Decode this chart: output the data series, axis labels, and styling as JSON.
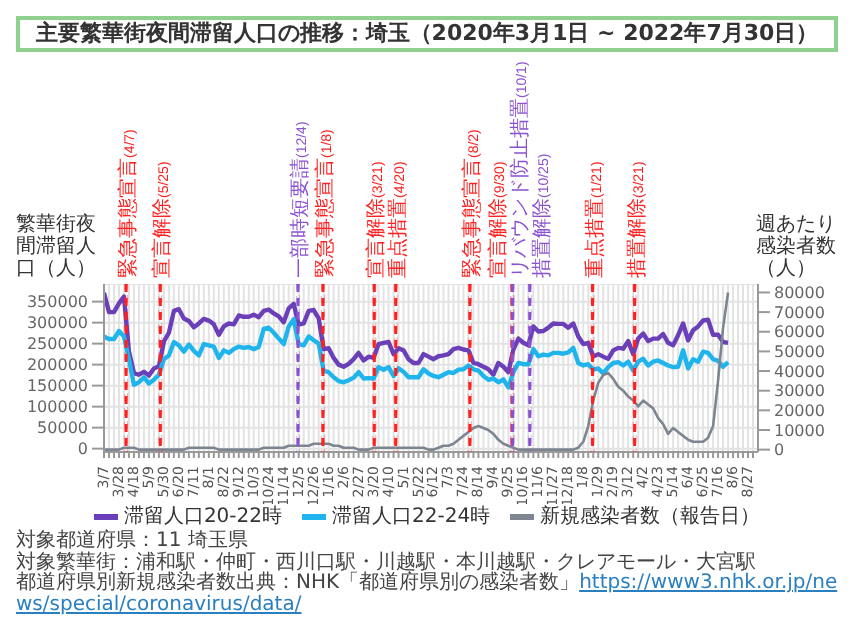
{
  "chart_data": {
    "type": "line",
    "title": "主要繁華街夜間滞留人口の推移：埼玉（2020年3月1日 ~ 2022年7月30日）",
    "ylabel": "繁華街夜間滞留人口（人）",
    "y2label": "週あたり感染者数（人）",
    "x": [
      "2020-03-07",
      "2020-03-14",
      "2020-03-21",
      "2020-03-28",
      "2020-04-04",
      "2020-04-11",
      "2020-04-18",
      "2020-04-25",
      "2020-05-02",
      "2020-05-09",
      "2020-05-16",
      "2020-05-23",
      "2020-05-30",
      "2020-06-06",
      "2020-06-13",
      "2020-06-20",
      "2020-06-27",
      "2020-07-04",
      "2020-07-11",
      "2020-07-18",
      "2020-07-25",
      "2020-08-01",
      "2020-08-08",
      "2020-08-15",
      "2020-08-22",
      "2020-08-29",
      "2020-09-05",
      "2020-09-12",
      "2020-09-19",
      "2020-09-26",
      "2020-10-03",
      "2020-10-10",
      "2020-10-17",
      "2020-10-24",
      "2020-10-31",
      "2020-11-07",
      "2020-11-14",
      "2020-11-21",
      "2020-11-28",
      "2020-12-05",
      "2020-12-12",
      "2020-12-19",
      "2020-12-26",
      "2021-01-02",
      "2021-01-09",
      "2021-01-16",
      "2021-01-23",
      "2021-01-30",
      "2021-02-06",
      "2021-02-13",
      "2021-02-20",
      "2021-02-27",
      "2021-03-06",
      "2021-03-13",
      "2021-03-20",
      "2021-03-27",
      "2021-04-03",
      "2021-04-10",
      "2021-04-17",
      "2021-04-24",
      "2021-05-01",
      "2021-05-08",
      "2021-05-15",
      "2021-05-22",
      "2021-05-29",
      "2021-06-05",
      "2021-06-12",
      "2021-06-19",
      "2021-06-26",
      "2021-07-03",
      "2021-07-10",
      "2021-07-17",
      "2021-07-24",
      "2021-07-31",
      "2021-08-07",
      "2021-08-14",
      "2021-08-21",
      "2021-08-28",
      "2021-09-04",
      "2021-09-11",
      "2021-09-18",
      "2021-09-25",
      "2021-10-02",
      "2021-10-09",
      "2021-10-16",
      "2021-10-23",
      "2021-10-30",
      "2021-11-06",
      "2021-11-13",
      "2021-11-20",
      "2021-11-27",
      "2021-12-04",
      "2021-12-11",
      "2021-12-18",
      "2021-12-25",
      "2022-01-01",
      "2022-01-08",
      "2022-01-15",
      "2022-01-22",
      "2022-01-29",
      "2022-02-05",
      "2022-02-12",
      "2022-02-19",
      "2022-02-26",
      "2022-03-05",
      "2022-03-12",
      "2022-03-19",
      "2022-03-26",
      "2022-04-02",
      "2022-04-09",
      "2022-04-16",
      "2022-04-23",
      "2022-04-30",
      "2022-05-07",
      "2022-05-14",
      "2022-05-21",
      "2022-05-28",
      "2022-06-04",
      "2022-06-11",
      "2022-06-18",
      "2022-06-25",
      "2022-07-02",
      "2022-07-09",
      "2022-07-16",
      "2022-07-23",
      "2022-07-30"
    ],
    "series": [
      {
        "name": "滞留人口20-22時",
        "color": "#6b3fb8",
        "values": [
          371000,
          325000,
          325000,
          346000,
          362000,
          231000,
          180000,
          176000,
          183000,
          174000,
          191000,
          196000,
          255000,
          276000,
          328000,
          332000,
          310000,
          304000,
          289000,
          298000,
          309000,
          305000,
          296000,
          271000,
          291000,
          298000,
          296000,
          317000,
          314000,
          314000,
          319000,
          313000,
          328000,
          331000,
          322000,
          315000,
          301000,
          334000,
          345000,
          295000,
          298000,
          328000,
          330000,
          310000,
          237000,
          239000,
          216000,
          200000,
          195000,
          202000,
          213000,
          228000,
          210000,
          219000,
          216000,
          249000,
          252000,
          254000,
          225000,
          239000,
          234000,
          213000,
          204000,
          204000,
          225000,
          219000,
          213000,
          220000,
          222000,
          225000,
          237000,
          240000,
          236000,
          234000,
          204000,
          201000,
          195000,
          189000,
          176000,
          204000,
          195000,
          182000,
          236000,
          262000,
          252000,
          246000,
          291000,
          279000,
          280000,
          288000,
          298000,
          297000,
          297000,
          288000,
          298000,
          267000,
          249000,
          252000,
          219000,
          225000,
          219000,
          214000,
          234000,
          240000,
          238000,
          256000,
          225000,
          262000,
          274000,
          256000,
          262000,
          262000,
          273000,
          252000,
          246000,
          270000,
          298000,
          258000,
          282000,
          291000,
          305000,
          307000,
          271000,
          271000,
          254000,
          252000
        ]
      },
      {
        "name": "滞留人口22-24時",
        "color": "#1fb5ec",
        "values": [
          267000,
          261000,
          261000,
          280000,
          267000,
          213000,
          152000,
          158000,
          170000,
          155000,
          164000,
          176000,
          213000,
          222000,
          254000,
          246000,
          231000,
          248000,
          233000,
          222000,
          249000,
          246000,
          243000,
          216000,
          234000,
          228000,
          237000,
          243000,
          240000,
          242000,
          237000,
          242000,
          285000,
          288000,
          276000,
          262000,
          249000,
          291000,
          308000,
          249000,
          246000,
          267000,
          258000,
          250000,
          185000,
          182000,
          170000,
          161000,
          158000,
          163000,
          169000,
          182000,
          167000,
          168000,
          167000,
          194000,
          188000,
          194000,
          173000,
          191000,
          183000,
          170000,
          170000,
          170000,
          189000,
          179000,
          173000,
          170000,
          176000,
          182000,
          180000,
          188000,
          189000,
          198000,
          189000,
          186000,
          173000,
          164000,
          167000,
          158000,
          165000,
          146000,
          182000,
          204000,
          201000,
          201000,
          237000,
          220000,
          224000,
          222000,
          228000,
          228000,
          226000,
          229000,
          240000,
          204000,
          198000,
          201000,
          188000,
          191000,
          179000,
          194000,
          204000,
          206000,
          198000,
          207000,
          186000,
          207000,
          214000,
          198000,
          207000,
          210000,
          204000,
          198000,
          194000,
          195000,
          234000,
          191000,
          213000,
          207000,
          231000,
          228000,
          213000,
          209000,
          195000,
          206000
        ]
      },
      {
        "name": "新規感染者数（報告日）",
        "color": "#7d8590",
        "axis": "y2",
        "values": [
          0,
          0,
          0,
          0,
          1000,
          1000,
          1000,
          0,
          0,
          0,
          0,
          0,
          0,
          0,
          0,
          0,
          0,
          1000,
          1000,
          1000,
          1000,
          1000,
          1000,
          0,
          0,
          0,
          0,
          0,
          0,
          0,
          0,
          0,
          1000,
          1000,
          1000,
          1000,
          1000,
          2000,
          2000,
          2000,
          2000,
          2000,
          3000,
          3000,
          3000,
          3000,
          2000,
          2000,
          1000,
          1000,
          1000,
          0,
          0,
          0,
          1000,
          1000,
          1000,
          1000,
          1000,
          1000,
          1000,
          1000,
          1000,
          1000,
          1000,
          0,
          0,
          1000,
          2000,
          2000,
          3000,
          5000,
          7000,
          9000,
          11000,
          12000,
          11000,
          10000,
          8000,
          5000,
          3000,
          2000,
          1000,
          0,
          0,
          0,
          0,
          0,
          0,
          0,
          0,
          0,
          0,
          0,
          0,
          1000,
          4000,
          12000,
          25000,
          34000,
          38000,
          39000,
          36000,
          32000,
          30000,
          27000,
          25000,
          22000,
          25000,
          23000,
          21000,
          16000,
          13000,
          8000,
          11000,
          9000,
          7000,
          5000,
          4000,
          4000,
          4000,
          6000,
          12000,
          35000,
          62000,
          80000
        ]
      }
    ],
    "xlim": [
      "2020-03-07",
      "2022-09-10"
    ],
    "xticks": [
      {
        "value": "2020-03-07",
        "label": "3/7"
      },
      {
        "value": "2020-03-14",
        "label": null
      },
      {
        "value": "2020-03-21",
        "label": null
      },
      {
        "value": "2020-03-28",
        "label": "3/28"
      },
      {
        "value": "2020-04-04",
        "label": null
      },
      {
        "value": "2020-04-11",
        "label": null
      },
      {
        "value": "2020-04-18",
        "label": "4/18"
      },
      {
        "value": "2020-04-25",
        "label": null
      },
      {
        "value": "2020-05-02",
        "label": null
      },
      {
        "value": "2020-05-09",
        "label": "5/9"
      },
      {
        "value": "2020-05-16",
        "label": null
      },
      {
        "value": "2020-05-23",
        "label": null
      },
      {
        "value": "2020-05-30",
        "label": "5/30"
      },
      {
        "value": "2020-06-06",
        "label": null
      },
      {
        "value": "2020-06-13",
        "label": null
      },
      {
        "value": "2020-06-20",
        "label": "6/20"
      },
      {
        "value": "2020-06-27",
        "label": null
      },
      {
        "value": "2020-07-04",
        "label": null
      },
      {
        "value": "2020-07-11",
        "label": "7/11"
      },
      {
        "value": "2020-07-18",
        "label": null
      },
      {
        "value": "2020-07-25",
        "label": null
      },
      {
        "value": "2020-08-01",
        "label": "8/1"
      },
      {
        "value": "2020-08-08",
        "label": null
      },
      {
        "value": "2020-08-15",
        "label": null
      },
      {
        "value": "2020-08-22",
        "label": "8/22"
      },
      {
        "value": "2020-08-29",
        "label": null
      },
      {
        "value": "2020-09-05",
        "label": null
      },
      {
        "value": "2020-09-12",
        "label": "9/12"
      },
      {
        "value": "2020-09-19",
        "label": null
      },
      {
        "value": "2020-09-26",
        "label": null
      },
      {
        "value": "2020-10-03",
        "label": "10/3"
      },
      {
        "value": "2020-10-10",
        "label": null
      },
      {
        "value": "2020-10-17",
        "label": null
      },
      {
        "value": "2020-10-24",
        "label": "10/24"
      },
      {
        "value": "2020-10-31",
        "label": null
      },
      {
        "value": "2020-11-07",
        "label": null
      },
      {
        "value": "2020-11-14",
        "label": "11/14"
      },
      {
        "value": "2020-11-21",
        "label": null
      },
      {
        "value": "2020-11-28",
        "label": null
      },
      {
        "value": "2020-12-05",
        "label": "12/5"
      },
      {
        "value": "2020-12-12",
        "label": null
      },
      {
        "value": "2020-12-19",
        "label": null
      },
      {
        "value": "2020-12-26",
        "label": "12/26"
      },
      {
        "value": "2021-01-02",
        "label": null
      },
      {
        "value": "2021-01-09",
        "label": null
      },
      {
        "value": "2021-01-16",
        "label": "1/16"
      },
      {
        "value": "2021-01-23",
        "label": null
      },
      {
        "value": "2021-01-30",
        "label": null
      },
      {
        "value": "2021-02-06",
        "label": "2/6"
      },
      {
        "value": "2021-02-13",
        "label": null
      },
      {
        "value": "2021-02-20",
        "label": null
      },
      {
        "value": "2021-02-27",
        "label": "2/27"
      },
      {
        "value": "2021-03-06",
        "label": null
      },
      {
        "value": "2021-03-13",
        "label": null
      },
      {
        "value": "2021-03-20",
        "label": "3/20"
      },
      {
        "value": "2021-03-27",
        "label": null
      },
      {
        "value": "2021-04-03",
        "label": null
      },
      {
        "value": "2021-04-10",
        "label": "4/10"
      },
      {
        "value": "2021-04-17",
        "label": null
      },
      {
        "value": "2021-04-24",
        "label": null
      },
      {
        "value": "2021-05-01",
        "label": "5/1"
      },
      {
        "value": "2021-05-08",
        "label": null
      },
      {
        "value": "2021-05-15",
        "label": null
      },
      {
        "value": "2021-05-22",
        "label": "5/22"
      },
      {
        "value": "2021-05-29",
        "label": null
      },
      {
        "value": "2021-06-05",
        "label": null
      },
      {
        "value": "2021-06-12",
        "label": "6/12"
      },
      {
        "value": "2021-06-19",
        "label": null
      },
      {
        "value": "2021-06-26",
        "label": null
      },
      {
        "value": "2021-07-03",
        "label": "7/3"
      },
      {
        "value": "2021-07-10",
        "label": null
      },
      {
        "value": "2021-07-17",
        "label": null
      },
      {
        "value": "2021-07-24",
        "label": "7/24"
      },
      {
        "value": "2021-07-31",
        "label": null
      },
      {
        "value": "2021-08-07",
        "label": null
      },
      {
        "value": "2021-08-14",
        "label": "8/14"
      },
      {
        "value": "2021-08-21",
        "label": null
      },
      {
        "value": "2021-08-28",
        "label": null
      },
      {
        "value": "2021-09-04",
        "label": "9/4"
      },
      {
        "value": "2021-09-11",
        "label": null
      },
      {
        "value": "2021-09-18",
        "label": null
      },
      {
        "value": "2021-09-25",
        "label": "9/25"
      },
      {
        "value": "2021-10-02",
        "label": null
      },
      {
        "value": "2021-10-09",
        "label": null
      },
      {
        "value": "2021-10-16",
        "label": "10/16"
      },
      {
        "value": "2021-10-23",
        "label": null
      },
      {
        "value": "2021-10-30",
        "label": null
      },
      {
        "value": "2021-11-06",
        "label": "11/6"
      },
      {
        "value": "2021-11-13",
        "label": null
      },
      {
        "value": "2021-11-20",
        "label": null
      },
      {
        "value": "2021-11-27",
        "label": "11/27"
      },
      {
        "value": "2021-12-04",
        "label": null
      },
      {
        "value": "2021-12-11",
        "label": null
      },
      {
        "value": "2021-12-18",
        "label": "12/18"
      },
      {
        "value": "2021-12-25",
        "label": null
      },
      {
        "value": "2022-01-01",
        "label": null
      },
      {
        "value": "2022-01-08",
        "label": "1/8"
      },
      {
        "value": "2022-01-15",
        "label": null
      },
      {
        "value": "2022-01-22",
        "label": null
      },
      {
        "value": "2022-01-29",
        "label": "1/29"
      },
      {
        "value": "2022-02-05",
        "label": null
      },
      {
        "value": "2022-02-12",
        "label": null
      },
      {
        "value": "2022-02-19",
        "label": "2/19"
      },
      {
        "value": "2022-02-26",
        "label": null
      },
      {
        "value": "2022-03-05",
        "label": null
      },
      {
        "value": "2022-03-12",
        "label": "3/12"
      },
      {
        "value": "2022-03-19",
        "label": null
      },
      {
        "value": "2022-03-26",
        "label": null
      },
      {
        "value": "2022-04-02",
        "label": "4/2"
      },
      {
        "value": "2022-04-09",
        "label": null
      },
      {
        "value": "2022-04-16",
        "label": null
      },
      {
        "value": "2022-04-23",
        "label": "4/23"
      },
      {
        "value": "2022-04-30",
        "label": null
      },
      {
        "value": "2022-05-07",
        "label": null
      },
      {
        "value": "2022-05-14",
        "label": "5/14"
      },
      {
        "value": "2022-05-21",
        "label": null
      },
      {
        "value": "2022-05-28",
        "label": null
      },
      {
        "value": "2022-06-04",
        "label": "6/4"
      },
      {
        "value": "2022-06-11",
        "label": null
      },
      {
        "value": "2022-06-18",
        "label": null
      },
      {
        "value": "2022-06-25",
        "label": "6/25"
      },
      {
        "value": "2022-07-02",
        "label": null
      },
      {
        "value": "2022-07-09",
        "label": null
      },
      {
        "value": "2022-07-16",
        "label": "7/16"
      },
      {
        "value": "2022-07-23",
        "label": null
      },
      {
        "value": "2022-07-30",
        "label": null
      },
      {
        "value": "2022-08-06",
        "label": "8/6"
      },
      {
        "value": "2022-08-13",
        "label": null
      },
      {
        "value": "2022-08-20",
        "label": null
      },
      {
        "value": "2022-08-27",
        "label": "8/27"
      },
      {
        "value": "2022-09-03",
        "label": null
      }
    ],
    "ylim": [
      -8000,
      392000
    ],
    "yticks": [
      0,
      50000,
      100000,
      150000,
      200000,
      250000,
      300000,
      350000
    ],
    "y2lim": [
      -1200,
      84300
    ],
    "y2ticks": [
      0,
      10000,
      20000,
      30000,
      40000,
      50000,
      60000,
      70000,
      80000
    ],
    "ref_lines": [
      {
        "axis": "x",
        "value": "2020-04-07",
        "label": "緊急事態宣言(4/7)",
        "color": "#ff2020",
        "line_style": "dashed"
      },
      {
        "axis": "x",
        "value": "2020-05-25",
        "label": "宣言解除(5/25)",
        "color": "#ff2020",
        "line_style": "dashed"
      },
      {
        "axis": "x",
        "value": "2020-12-04",
        "label": "一部時短要請(12/4)",
        "color": "#8a52d0",
        "line_style": "dashed"
      },
      {
        "axis": "x",
        "value": "2021-01-08",
        "label": "緊急事態宣言(1/8)",
        "color": "#ff2020",
        "line_style": "dashed"
      },
      {
        "axis": "x",
        "value": "2021-03-21",
        "label": "宣言解除(3/21)",
        "color": "#ff2020",
        "line_style": "dashed"
      },
      {
        "axis": "x",
        "value": "2021-04-20",
        "label": "重点措置(4/20)",
        "color": "#ff2020",
        "line_style": "dashed"
      },
      {
        "axis": "x",
        "value": "2021-08-02",
        "label": "緊急事態宣言(8/2)",
        "color": "#ff2020",
        "line_style": "dashed"
      },
      {
        "axis": "x",
        "value": "2021-09-30",
        "label": "宣言解除(9/30)",
        "color": "#ff2020",
        "line_style": "dashed"
      },
      {
        "axis": "x",
        "value": "2021-10-01",
        "label": "リバウンド防止措置(10/1)",
        "color": "#8a52d0",
        "line_style": "dashed"
      },
      {
        "axis": "x",
        "value": "2021-10-25",
        "label": "措置解除(10/25)",
        "color": "#8a52d0",
        "line_style": "dashed"
      },
      {
        "axis": "x",
        "value": "2022-01-21",
        "label": "重点措置(1/21)",
        "color": "#ff2020",
        "line_style": "dashed"
      },
      {
        "axis": "x",
        "value": "2022-03-21",
        "label": "措置解除(3/21)",
        "color": "#ff2020",
        "line_style": "dashed"
      }
    ],
    "grid": true,
    "legend": "bottom",
    "annotations": [
      "対象都道府県：11 埼玉県",
      "対象繁華街：浦和駅・仲町・西川口駅・川越駅・本川越駅・クレアモール・大宮駅",
      "都道府県別新規感染者数出典：NHK「都道府県別の感染者数」https://www3.nhk.or.jp/news/special/coronavirus/data/"
    ]
  }
}
